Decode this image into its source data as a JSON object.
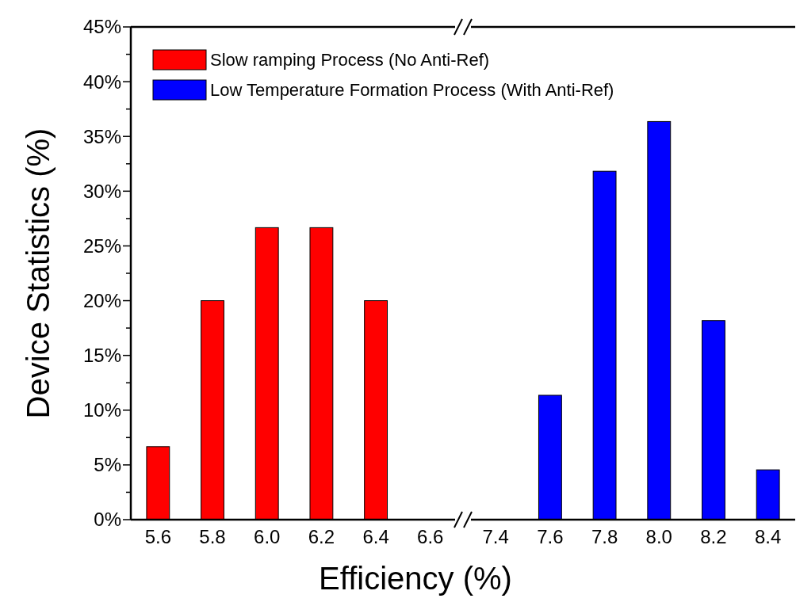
{
  "chart_data": [
    {
      "type": "bar",
      "xlabel": "Efficiency (%)",
      "ylabel": "Device Statistics (%)",
      "xlim": [
        5.5,
        6.72
      ],
      "xticks": [
        {
          "value": 5.6,
          "label": "5.6"
        },
        {
          "value": 5.8,
          "label": "5.8"
        },
        {
          "value": 6.0,
          "label": "6.0"
        },
        {
          "value": 6.2,
          "label": "6.2"
        },
        {
          "value": 6.4,
          "label": "6.4"
        },
        {
          "value": 6.6,
          "label": "6.6"
        }
      ],
      "ylim": [
        0,
        45
      ],
      "yticks": [
        {
          "value": 0,
          "label": "0%"
        },
        {
          "value": 2.5,
          "label": null
        },
        {
          "value": 5,
          "label": "5%"
        },
        {
          "value": 7.5,
          "label": null
        },
        {
          "value": 10,
          "label": "10%"
        },
        {
          "value": 12.5,
          "label": null
        },
        {
          "value": 15,
          "label": "15%"
        },
        {
          "value": 17.5,
          "label": null
        },
        {
          "value": 20,
          "label": "20%"
        },
        {
          "value": 22.5,
          "label": null
        },
        {
          "value": 25,
          "label": "25%"
        },
        {
          "value": 27.5,
          "label": null
        },
        {
          "value": 30,
          "label": "30%"
        },
        {
          "value": 32.5,
          "label": null
        },
        {
          "value": 35,
          "label": "35%"
        },
        {
          "value": 37.5,
          "label": null
        },
        {
          "value": 40,
          "label": "40%"
        },
        {
          "value": 42.5,
          "label": null
        },
        {
          "value": 45,
          "label": "45%"
        }
      ],
      "series": [
        {
          "name": "Slow ramping Process (No Anti-Ref)",
          "color": "#ff0000",
          "x": [
            5.6,
            5.8,
            6.0,
            6.2,
            6.4
          ],
          "values": [
            6.67,
            20,
            26.67,
            26.67,
            20
          ]
        }
      ],
      "legend": "top",
      "grid": false
    },
    {
      "type": "bar",
      "xlim": [
        7.28,
        8.5
      ],
      "xticks": [
        {
          "value": 7.4,
          "label": "7.4"
        },
        {
          "value": 7.6,
          "label": "7.6"
        },
        {
          "value": 7.8,
          "label": "7.8"
        },
        {
          "value": 8.0,
          "label": "8.0"
        },
        {
          "value": 8.2,
          "label": "8.2"
        },
        {
          "value": 8.4,
          "label": "8.4"
        }
      ],
      "ylim": [
        0,
        45
      ],
      "tick_labels": "x",
      "grid": false,
      "series": [
        {
          "name": "Low Temperature Formation Process (With Anti-Ref)",
          "color": "#0000ff",
          "x": [
            7.6,
            7.8,
            8.0,
            8.2,
            8.4
          ],
          "values": [
            11.36,
            31.82,
            36.36,
            18.18,
            4.55
          ]
        }
      ],
      "legend": "top left"
    }
  ]
}
